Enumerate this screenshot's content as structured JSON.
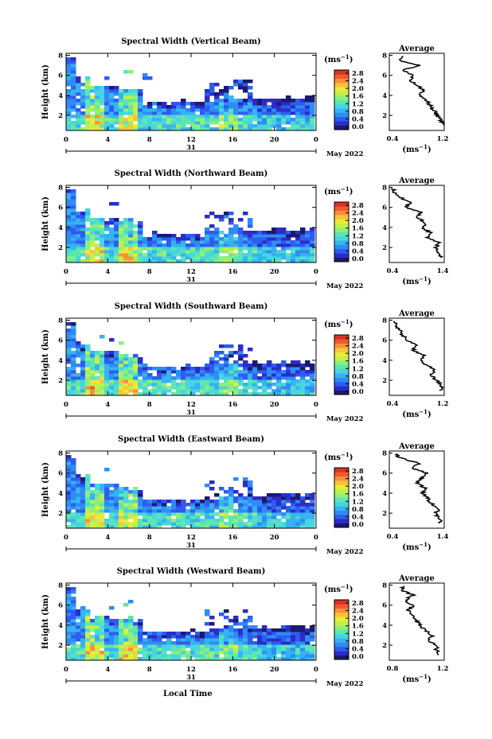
{
  "x_axis_label": "Local Time",
  "date_label": "May 2022",
  "day_label": "31",
  "unit_label": "(ms",
  "unit_sup": "−1",
  "unit_close": ")",
  "avg_title": "Average",
  "colorbar": {
    "ticks": [
      "2.8",
      "2.4",
      "2.0",
      "1.6",
      "1.2",
      "0.8",
      "0.4",
      "0.0"
    ],
    "colors": [
      "#1a1a6e",
      "#2c2cc8",
      "#2e5cf0",
      "#2f8cf5",
      "#36b3f0",
      "#47d6e0",
      "#5de6b0",
      "#8ef07a",
      "#c2f04a",
      "#ebea3a",
      "#f9c23a",
      "#f7903a",
      "#ef5a2e",
      "#d93225"
    ]
  },
  "chart_data": [
    {
      "type": "heatmap",
      "title": "Spectral Width (Vertical Beam)",
      "ylabel": "Height (km)",
      "xticks": [
        "0",
        "4",
        "8",
        "12",
        "16",
        "20",
        "0"
      ],
      "yticks": [
        "2",
        "4",
        "6",
        "8"
      ],
      "ylim": [
        0.5,
        8.2
      ],
      "xlim": [
        0,
        24
      ],
      "avg_xticks": [
        "0.4",
        "1.2"
      ],
      "avg_xlim": [
        0.4,
        1.2
      ],
      "avg_profile": [
        [
          1.2,
          1.0
        ],
        [
          1.15,
          1.5
        ],
        [
          1.1,
          2.0
        ],
        [
          1.05,
          2.5
        ],
        [
          1.0,
          3.0
        ],
        [
          0.95,
          3.5
        ],
        [
          0.85,
          4.0
        ],
        [
          0.9,
          4.5
        ],
        [
          0.8,
          5.0
        ],
        [
          0.7,
          5.5
        ],
        [
          0.75,
          6.0
        ],
        [
          0.6,
          6.5
        ],
        [
          0.85,
          7.0
        ],
        [
          0.55,
          7.5
        ],
        [
          0.6,
          8.0
        ]
      ]
    },
    {
      "type": "heatmap",
      "title": "Spectral Width (Northward Beam)",
      "ylabel": "Height (km)",
      "xticks": [
        "0",
        "4",
        "8",
        "12",
        "16",
        "20",
        "0"
      ],
      "yticks": [
        "2",
        "4",
        "6",
        "8"
      ],
      "ylim": [
        0.5,
        8.2
      ],
      "xlim": [
        0,
        24
      ],
      "avg_xticks": [
        "0.4",
        "1.4"
      ],
      "avg_xlim": [
        0.4,
        1.4
      ],
      "avg_profile": [
        [
          1.35,
          1.0
        ],
        [
          1.3,
          1.5
        ],
        [
          1.25,
          2.0
        ],
        [
          1.3,
          2.5
        ],
        [
          1.1,
          3.0
        ],
        [
          1.15,
          3.5
        ],
        [
          1.0,
          4.0
        ],
        [
          1.05,
          4.5
        ],
        [
          0.9,
          5.0
        ],
        [
          1.0,
          5.5
        ],
        [
          0.7,
          6.0
        ],
        [
          0.8,
          6.5
        ],
        [
          0.6,
          7.0
        ],
        [
          0.5,
          7.5
        ],
        [
          0.45,
          8.0
        ]
      ]
    },
    {
      "type": "heatmap",
      "title": "Spectral Width (Southward Beam)",
      "ylabel": "Height (km)",
      "xticks": [
        "0",
        "4",
        "8",
        "12",
        "16",
        "20",
        "0"
      ],
      "yticks": [
        "2",
        "4",
        "6",
        "8"
      ],
      "ylim": [
        0.5,
        8.2
      ],
      "xlim": [
        0,
        24
      ],
      "avg_xticks": [
        "0.4",
        "1.2"
      ],
      "avg_xlim": [
        0.4,
        1.2
      ],
      "avg_profile": [
        [
          1.15,
          1.0
        ],
        [
          1.15,
          1.5
        ],
        [
          1.1,
          2.0
        ],
        [
          1.0,
          2.5
        ],
        [
          1.05,
          3.0
        ],
        [
          0.95,
          3.5
        ],
        [
          0.85,
          4.0
        ],
        [
          0.9,
          4.5
        ],
        [
          0.75,
          5.0
        ],
        [
          0.8,
          5.5
        ],
        [
          0.65,
          6.0
        ],
        [
          0.6,
          6.5
        ],
        [
          0.55,
          7.0
        ],
        [
          0.5,
          7.5
        ],
        [
          0.45,
          8.0
        ]
      ]
    },
    {
      "type": "heatmap",
      "title": "Spectral Width (Eastward Beam)",
      "ylabel": "Height (km)",
      "xticks": [
        "0",
        "4",
        "8",
        "12",
        "16",
        "20",
        "0"
      ],
      "yticks": [
        "2",
        "4",
        "6",
        "8"
      ],
      "ylim": [
        0.5,
        8.2
      ],
      "xlim": [
        0,
        24
      ],
      "avg_xticks": [
        "0.4",
        "1.4"
      ],
      "avg_xlim": [
        0.4,
        1.4
      ],
      "avg_profile": [
        [
          1.35,
          1.0
        ],
        [
          1.3,
          1.5
        ],
        [
          1.25,
          2.0
        ],
        [
          1.3,
          2.5
        ],
        [
          1.15,
          3.0
        ],
        [
          1.1,
          3.5
        ],
        [
          1.0,
          4.0
        ],
        [
          1.05,
          4.5
        ],
        [
          0.9,
          5.0
        ],
        [
          1.0,
          5.5
        ],
        [
          1.1,
          6.0
        ],
        [
          0.8,
          6.5
        ],
        [
          0.95,
          7.0
        ],
        [
          0.6,
          7.5
        ],
        [
          0.5,
          8.0
        ]
      ]
    },
    {
      "type": "heatmap",
      "title": "Spectral Width (Westward Beam)",
      "ylabel": "Height (km)",
      "xticks": [
        "0",
        "4",
        "8",
        "12",
        "16",
        "20",
        "0"
      ],
      "yticks": [
        "2",
        "4",
        "6",
        "8"
      ],
      "ylim": [
        0.5,
        8.2
      ],
      "xlim": [
        0,
        24
      ],
      "avg_xticks": [
        "0.8",
        "1.2"
      ],
      "avg_xlim": [
        0.6,
        1.3
      ],
      "avg_profile": [
        [
          1.25,
          1.0
        ],
        [
          1.2,
          1.5
        ],
        [
          1.2,
          2.0
        ],
        [
          1.1,
          2.5
        ],
        [
          1.15,
          3.0
        ],
        [
          1.05,
          3.5
        ],
        [
          1.0,
          4.0
        ],
        [
          0.95,
          4.5
        ],
        [
          0.9,
          5.0
        ],
        [
          0.85,
          5.5
        ],
        [
          0.9,
          6.0
        ],
        [
          0.8,
          6.5
        ],
        [
          0.9,
          7.0
        ],
        [
          0.75,
          7.5
        ],
        [
          0.8,
          8.0
        ]
      ]
    }
  ]
}
